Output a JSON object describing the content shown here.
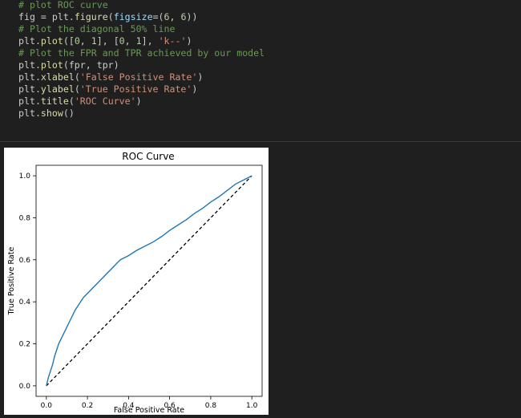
{
  "code": {
    "lines": [
      [
        {
          "t": "# plot ROC curve",
          "c": "cm"
        }
      ],
      [
        {
          "t": "fig = plt.",
          "c": ""
        },
        {
          "t": "figure",
          "c": "fn"
        },
        {
          "t": "(",
          "c": ""
        },
        {
          "t": "figsize",
          "c": "kw"
        },
        {
          "t": "=(",
          "c": ""
        },
        {
          "t": "6",
          "c": "num"
        },
        {
          "t": ", ",
          "c": ""
        },
        {
          "t": "6",
          "c": "num"
        },
        {
          "t": "))",
          "c": ""
        }
      ],
      [
        {
          "t": "# Plot the diagonal 50% line",
          "c": "cm"
        }
      ],
      [
        {
          "t": "plt.",
          "c": ""
        },
        {
          "t": "plot",
          "c": "fn"
        },
        {
          "t": "([",
          "c": ""
        },
        {
          "t": "0",
          "c": "num"
        },
        {
          "t": ", ",
          "c": ""
        },
        {
          "t": "1",
          "c": "num"
        },
        {
          "t": "], [",
          "c": ""
        },
        {
          "t": "0",
          "c": "num"
        },
        {
          "t": ", ",
          "c": ""
        },
        {
          "t": "1",
          "c": "num"
        },
        {
          "t": "], ",
          "c": ""
        },
        {
          "t": "'k--'",
          "c": "str"
        },
        {
          "t": ")",
          "c": ""
        }
      ],
      [
        {
          "t": "# Plot the FPR and TPR achieved by our model",
          "c": "cm"
        }
      ],
      [
        {
          "t": "plt.",
          "c": ""
        },
        {
          "t": "plot",
          "c": "fn"
        },
        {
          "t": "(fpr, tpr)",
          "c": ""
        }
      ],
      [
        {
          "t": "plt.",
          "c": ""
        },
        {
          "t": "xlabel",
          "c": "fn"
        },
        {
          "t": "(",
          "c": ""
        },
        {
          "t": "'False Positive Rate'",
          "c": "str"
        },
        {
          "t": ")",
          "c": ""
        }
      ],
      [
        {
          "t": "plt.",
          "c": ""
        },
        {
          "t": "ylabel",
          "c": "fn"
        },
        {
          "t": "(",
          "c": ""
        },
        {
          "t": "'True Positive Rate'",
          "c": "str"
        },
        {
          "t": ")",
          "c": ""
        }
      ],
      [
        {
          "t": "plt.",
          "c": ""
        },
        {
          "t": "title",
          "c": "fn"
        },
        {
          "t": "(",
          "c": ""
        },
        {
          "t": "'ROC Curve'",
          "c": "str"
        },
        {
          "t": ")",
          "c": ""
        }
      ],
      [
        {
          "t": "plt.",
          "c": ""
        },
        {
          "t": "show",
          "c": "fn"
        },
        {
          "t": "()",
          "c": ""
        }
      ]
    ]
  },
  "chart_data": {
    "type": "line",
    "title": "ROC Curve",
    "xlabel": "False Positive Rate",
    "ylabel": "True Positive Rate",
    "xlim": [
      -0.05,
      1.05
    ],
    "ylim": [
      -0.05,
      1.05
    ],
    "xticks": [
      "0.0",
      "0.2",
      "0.4",
      "0.6",
      "0.8",
      "1.0"
    ],
    "yticks": [
      "0.0",
      "0.2",
      "0.4",
      "0.6",
      "0.8",
      "1.0"
    ],
    "grid": false,
    "series": [
      {
        "style": "dashed",
        "color": "#000000",
        "x": [
          0,
          1
        ],
        "y": [
          0,
          1
        ]
      },
      {
        "style": "solid",
        "color": "#1f77b4",
        "x": [
          0,
          0.01,
          0.02,
          0.03,
          0.04,
          0.05,
          0.06,
          0.08,
          0.1,
          0.12,
          0.14,
          0.16,
          0.18,
          0.2,
          0.22,
          0.25,
          0.28,
          0.3,
          0.33,
          0.36,
          0.4,
          0.44,
          0.48,
          0.52,
          0.56,
          0.6,
          0.64,
          0.68,
          0.72,
          0.76,
          0.8,
          0.84,
          0.88,
          0.92,
          0.95,
          0.98,
          1.0
        ],
        "y": [
          0,
          0.04,
          0.07,
          0.1,
          0.14,
          0.17,
          0.2,
          0.24,
          0.28,
          0.32,
          0.36,
          0.39,
          0.42,
          0.44,
          0.46,
          0.49,
          0.52,
          0.54,
          0.57,
          0.6,
          0.62,
          0.645,
          0.665,
          0.685,
          0.71,
          0.74,
          0.765,
          0.79,
          0.82,
          0.845,
          0.875,
          0.9,
          0.93,
          0.96,
          0.975,
          0.99,
          1.0
        ]
      }
    ]
  }
}
